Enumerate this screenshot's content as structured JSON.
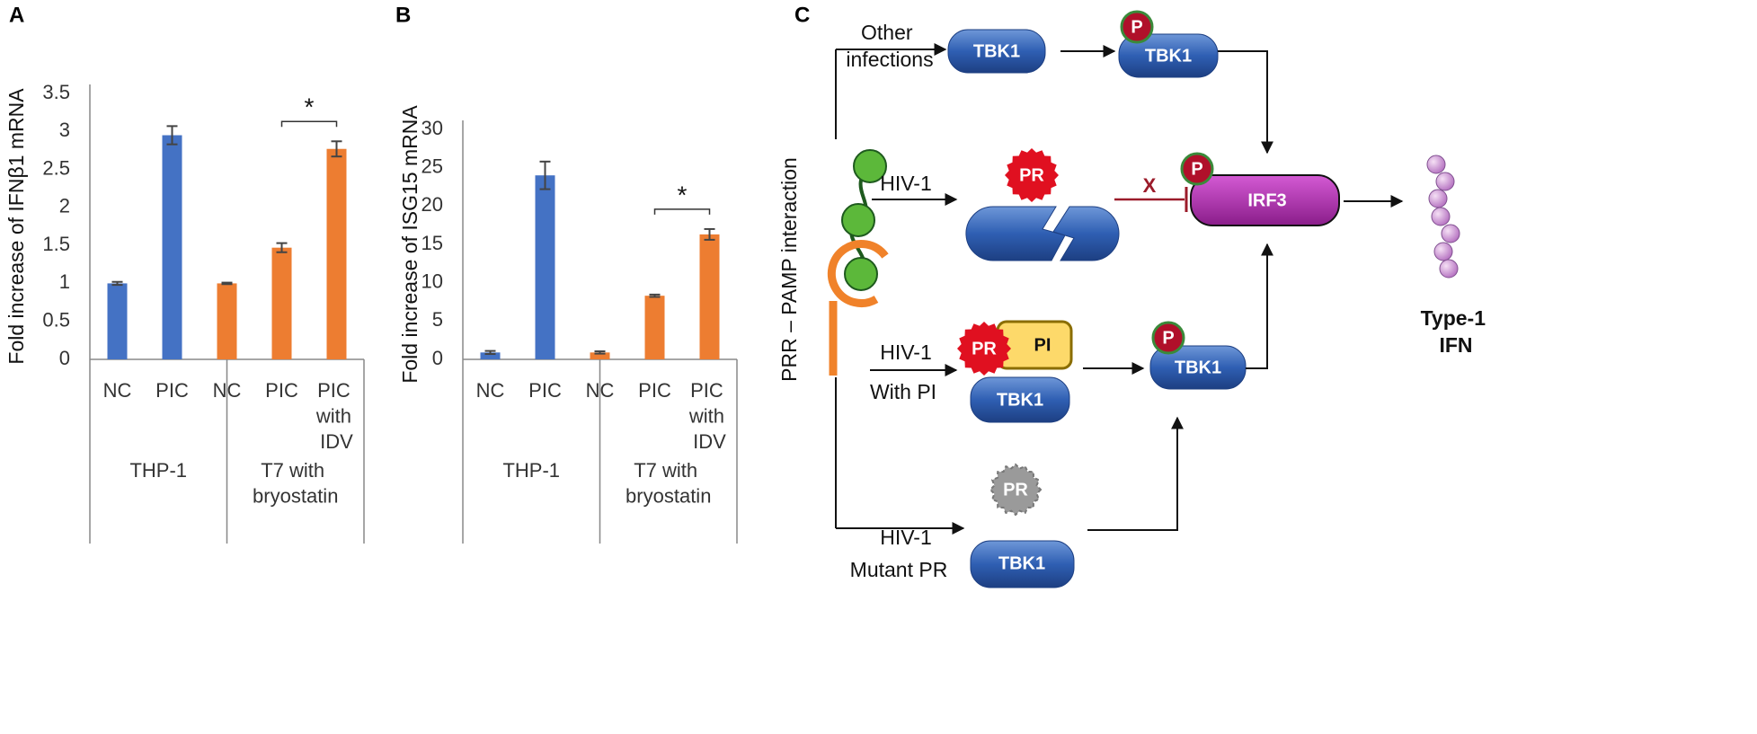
{
  "chart_data": [
    {
      "type": "bar",
      "panel_label": "A",
      "ylabel": "Fold increase of IFNβ1 mRNA",
      "categories": [
        "NC",
        "PIC",
        "NC",
        "PIC",
        "PIC with IDV"
      ],
      "groups": [
        "THP-1",
        "T7 with bryostatin"
      ],
      "values": [
        1.0,
        2.95,
        1.0,
        1.47,
        2.77
      ],
      "errors": [
        0.02,
        0.12,
        0.01,
        0.06,
        0.1
      ],
      "colors": [
        "#4472c4",
        "#4472c4",
        "#ed7d31",
        "#ed7d31",
        "#ed7d31"
      ],
      "annotation": "*",
      "ylim": [
        0,
        3.5
      ],
      "yticks": [
        0,
        0.5,
        1,
        1.5,
        2,
        2.5,
        3,
        3.5
      ]
    },
    {
      "type": "bar",
      "panel_label": "B",
      "ylabel": "Fold increase of ISG15 mRNA",
      "categories": [
        "NC",
        "PIC",
        "NC",
        "PIC",
        "PIC with IDV"
      ],
      "groups": [
        "THP-1",
        "T7 with bryostatin"
      ],
      "values": [
        0.9,
        24,
        0.9,
        8.3,
        16.3
      ],
      "errors": [
        0.2,
        1.8,
        0.15,
        0.15,
        0.7
      ],
      "colors": [
        "#4472c4",
        "#4472c4",
        "#ed7d31",
        "#ed7d31",
        "#ed7d31"
      ],
      "annotation": "*",
      "ylim": [
        0,
        30
      ],
      "yticks": [
        0,
        5,
        10,
        15,
        20,
        25,
        30
      ]
    }
  ],
  "diagram": {
    "panel_label": "C",
    "side_label": "PRR – PAMP interaction",
    "branches": [
      {
        "label": "Other infections"
      },
      {
        "label": "HIV-1"
      },
      {
        "label": "HIV-1",
        "sublabel": "With PI"
      },
      {
        "label": "HIV-1",
        "sublabel": "Mutant PR"
      }
    ],
    "kinase": "TBK1",
    "protease": "PR",
    "inhibitor": "PI",
    "phospho": "P",
    "factor": "IRF3",
    "block": "X",
    "output": "Type-1 IFN"
  }
}
